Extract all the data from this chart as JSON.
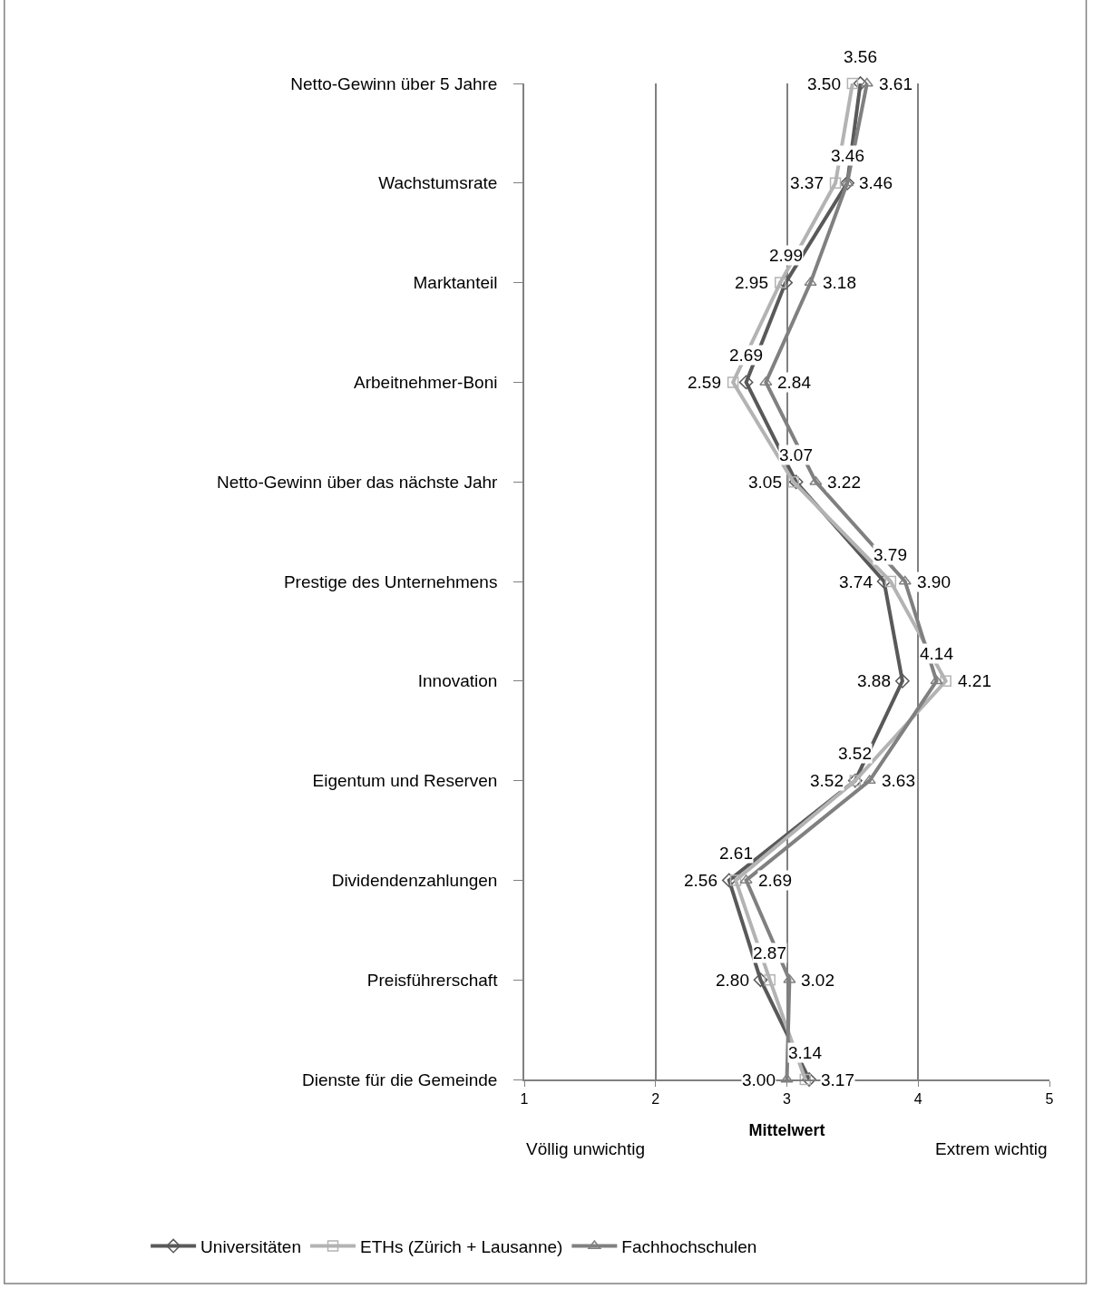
{
  "chart_data": {
    "type": "line",
    "orientation": "horizontal",
    "categories": [
      "Netto-Gewinn über 5 Jahre",
      "Wachstumsrate",
      "Marktanteil",
      "Arbeitnehmer-Boni",
      "Netto-Gewinn über das nächste Jahr",
      "Prestige des Unternehmens",
      "Innovation",
      "Eigentum und Reserven",
      "Dividendenzahlungen",
      "Preisführerschaft",
      "Dienste für die Gemeinde"
    ],
    "series": [
      {
        "name": "Universitäten",
        "color": "#595959",
        "marker": "diamond",
        "values": [
          3.56,
          3.46,
          2.99,
          2.69,
          3.07,
          3.74,
          3.88,
          3.52,
          2.56,
          2.8,
          3.17
        ],
        "value_labels": [
          "3.56",
          "3.46",
          "2.99",
          "2.69",
          "3.07",
          "3.74",
          "3.88",
          "3.52",
          "2.56",
          "2.80",
          "3.17"
        ]
      },
      {
        "name": "ETHs (Zürich + Lausanne)",
        "color": "#b3b3b3",
        "marker": "square",
        "values": [
          3.5,
          3.37,
          2.95,
          2.59,
          3.05,
          3.79,
          4.21,
          3.52,
          2.61,
          2.87,
          3.14
        ],
        "value_labels": [
          "3.50",
          "3.37",
          "2.95",
          "2.59",
          "3.05",
          "3.79",
          "4.21",
          "3.52",
          "2.61",
          "2.87",
          "3.14"
        ]
      },
      {
        "name": "Fachhochschulen",
        "color": "#808080",
        "marker": "triangle",
        "values": [
          3.61,
          3.46,
          3.18,
          2.84,
          3.22,
          3.9,
          4.14,
          3.63,
          2.69,
          3.02,
          3.0
        ],
        "value_labels": [
          "3.61",
          "3.46",
          "3.18",
          "2.84",
          "3.22",
          "3.90",
          "4.14",
          "3.63",
          "2.69",
          "3.02",
          "3.00"
        ]
      }
    ],
    "xlim": [
      1,
      5
    ],
    "xticks": [
      1,
      2,
      3,
      4,
      5
    ],
    "xlabel": "Mittelwert",
    "annotations": [
      "Völlig unwichtig",
      "Extrem wichtig"
    ],
    "grid": "x",
    "legend": "bottom",
    "line_style": "solid"
  }
}
